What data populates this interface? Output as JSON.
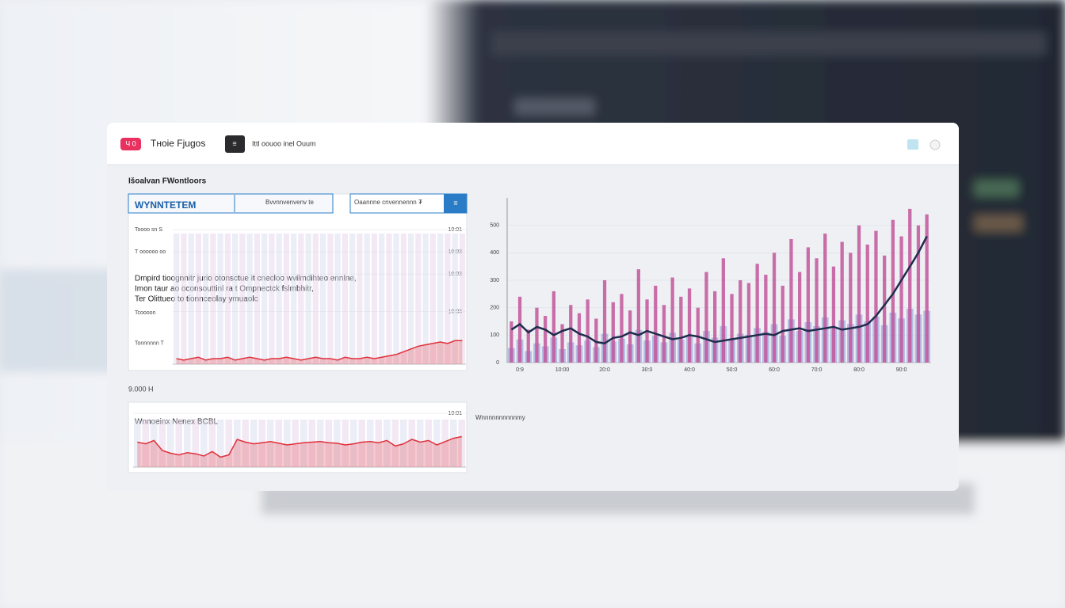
{
  "header": {
    "badge": "Ч 0",
    "app_name": "Tнoie Fjugos",
    "menu_button": "≡",
    "breadcrumb": "Ittl oouoo inel Ouum"
  },
  "panel": {
    "title": "Išoalvan FWontloors",
    "tab_active": "WYNNTETEM",
    "tab_1": "Bvvnnvenvenv  te",
    "tab_2": "Oaannne cnvennennn ₮",
    "tab_button": "≡",
    "paragraph": [
      "Dmpird tioognnitr jurio otonsctue it cnecloo wvilmdihteo ennlne,",
      "Imon taur ao oconsouttinl ra t Ompnectck fslmbhitr,",
      "Ter Olittueo to tionnceolay ymuaolc"
    ],
    "section_label": "9.000 Н",
    "side_label": "Wnnnnnnnnnnmy",
    "lower_title": "Wnnoeinx   Nenex   BCBL"
  },
  "chart_data": [
    {
      "type": "combo",
      "categories": [
        null,
        "0:9",
        null,
        null,
        null,
        null,
        "10:00",
        null,
        null,
        null,
        null,
        "20:0",
        null,
        null,
        null,
        null,
        "30:0",
        null,
        null,
        null,
        null,
        "40:0",
        null,
        null,
        null,
        null,
        "50:0",
        null,
        null,
        null,
        null,
        "60:0",
        null,
        null,
        null,
        null,
        "70:0",
        null,
        null,
        null,
        null,
        "80:0",
        null,
        null,
        null,
        null,
        "90:0",
        null,
        null,
        null
      ],
      "series": [
        {
          "type": "bar",
          "color": "#c2569b",
          "values": [
            150,
            240,
            120,
            200,
            170,
            260,
            140,
            210,
            180,
            230,
            160,
            300,
            220,
            250,
            190,
            340,
            230,
            280,
            210,
            310,
            240,
            270,
            200,
            330,
            260,
            380,
            250,
            300,
            290,
            360,
            320,
            400,
            280,
            450,
            330,
            420,
            380,
            470,
            350,
            440,
            400,
            500,
            430,
            480,
            390,
            520,
            460,
            560,
            500,
            540
          ]
        },
        {
          "type": "line",
          "color": "#1f2d4d",
          "values": [
            120,
            140,
            110,
            130,
            120,
            100,
            115,
            125,
            105,
            95,
            75,
            70,
            90,
            95,
            110,
            100,
            115,
            105,
            95,
            85,
            90,
            100,
            95,
            85,
            75,
            80,
            85,
            90,
            95,
            100,
            105,
            100,
            115,
            120,
            125,
            115,
            120,
            125,
            130,
            120,
            125,
            130,
            140,
            170,
            210,
            250,
            300,
            350,
            400,
            460
          ]
        }
      ],
      "ylim": [
        0,
        600
      ],
      "yticks": [
        0,
        100,
        200,
        300,
        400,
        500
      ],
      "grid": true
    },
    {
      "type": "line",
      "series": [
        {
          "color": "#e0303a",
          "values": [
            4,
            3,
            4,
            5,
            3,
            4,
            4,
            5,
            3,
            4,
            5,
            4,
            3,
            4,
            4,
            5,
            4,
            3,
            4,
            5,
            4,
            4,
            3,
            5,
            4,
            4,
            5,
            4,
            5,
            6,
            7,
            9,
            11,
            13,
            14,
            15,
            16,
            15,
            17,
            17
          ]
        }
      ],
      "ylim": [
        0,
        100
      ],
      "yticks": [
        {
          "value": 15,
          "label": "Tonnnnnn T"
        },
        {
          "value": 37,
          "label": "Tcoooon"
        },
        {
          "value": 81,
          "label": "T oooooo oo"
        },
        {
          "value": 97,
          "label": "Toooo sn S"
        }
      ],
      "y2lim": [
        0,
        100
      ],
      "y2ticks": [
        {
          "value": 38,
          "label": "10:03"
        },
        {
          "value": 65,
          "label": "10:03"
        },
        {
          "value": 81,
          "label": "10:03"
        },
        {
          "value": 97,
          "label": "10:01"
        }
      ]
    },
    {
      "type": "line",
      "series": [
        {
          "color": "#e0303a",
          "values": [
            45,
            42,
            48,
            30,
            25,
            22,
            26,
            24,
            20,
            28,
            18,
            22,
            50,
            45,
            42,
            44,
            46,
            43,
            40,
            42,
            44,
            45,
            46,
            44,
            43,
            40,
            42,
            45,
            46,
            44,
            48,
            38,
            42,
            50,
            45,
            48,
            40,
            46,
            52,
            55
          ]
        }
      ],
      "ylim": [
        0,
        100
      ],
      "y2lim": [
        0,
        100
      ],
      "y2ticks": [
        {
          "value": 97,
          "label": "10:01"
        }
      ]
    }
  ]
}
